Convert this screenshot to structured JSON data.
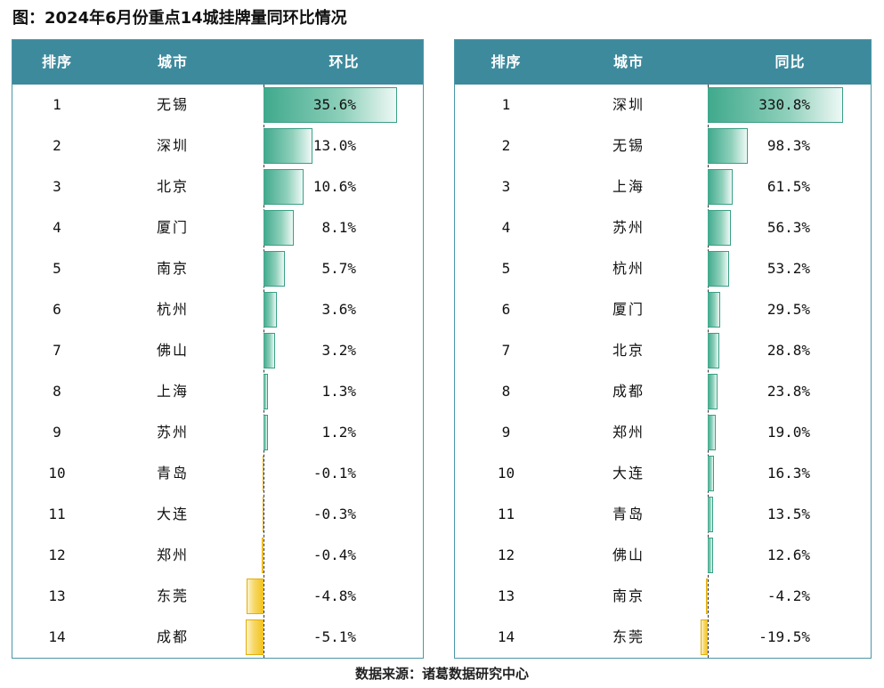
{
  "title": "图：2024年6月份重点14城挂牌量同环比情况",
  "source": "数据来源：诸葛数据研究中心",
  "colors": {
    "header_bg": "#3e8a9d",
    "positive_bar": "#3fa98c",
    "negative_bar": "#f2c21b"
  },
  "chart_data": [
    {
      "type": "table",
      "headers": {
        "rank": "排序",
        "city": "城市",
        "metric": "环比"
      },
      "rows": [
        {
          "rank": "1",
          "city": "无锡",
          "label": "35.6%",
          "value": 35.6
        },
        {
          "rank": "2",
          "city": "深圳",
          "label": "13.0%",
          "value": 13.0
        },
        {
          "rank": "3",
          "city": "北京",
          "label": "10.6%",
          "value": 10.6
        },
        {
          "rank": "4",
          "city": "厦门",
          "label": "8.1%",
          "value": 8.1
        },
        {
          "rank": "5",
          "city": "南京",
          "label": "5.7%",
          "value": 5.7
        },
        {
          "rank": "6",
          "city": "杭州",
          "label": "3.6%",
          "value": 3.6
        },
        {
          "rank": "7",
          "city": "佛山",
          "label": "3.2%",
          "value": 3.2
        },
        {
          "rank": "8",
          "city": "上海",
          "label": "1.3%",
          "value": 1.3
        },
        {
          "rank": "9",
          "city": "苏州",
          "label": "1.2%",
          "value": 1.2
        },
        {
          "rank": "10",
          "city": "青岛",
          "label": "-0.1%",
          "value": -0.1
        },
        {
          "rank": "11",
          "city": "大连",
          "label": "-0.3%",
          "value": -0.3
        },
        {
          "rank": "12",
          "city": "郑州",
          "label": "-0.4%",
          "value": -0.4
        },
        {
          "rank": "13",
          "city": "东莞",
          "label": "-4.8%",
          "value": -4.8
        },
        {
          "rank": "14",
          "city": "成都",
          "label": "-5.1%",
          "value": -5.1
        }
      ]
    },
    {
      "type": "table",
      "headers": {
        "rank": "排序",
        "city": "城市",
        "metric": "同比"
      },
      "rows": [
        {
          "rank": "1",
          "city": "深圳",
          "label": "330.8%",
          "value": 330.8
        },
        {
          "rank": "2",
          "city": "无锡",
          "label": "98.3%",
          "value": 98.3
        },
        {
          "rank": "3",
          "city": "上海",
          "label": "61.5%",
          "value": 61.5
        },
        {
          "rank": "4",
          "city": "苏州",
          "label": "56.3%",
          "value": 56.3
        },
        {
          "rank": "5",
          "city": "杭州",
          "label": "53.2%",
          "value": 53.2
        },
        {
          "rank": "6",
          "city": "厦门",
          "label": "29.5%",
          "value": 29.5
        },
        {
          "rank": "7",
          "city": "北京",
          "label": "28.8%",
          "value": 28.8
        },
        {
          "rank": "8",
          "city": "成都",
          "label": "23.8%",
          "value": 23.8
        },
        {
          "rank": "9",
          "city": "郑州",
          "label": "19.0%",
          "value": 19.0
        },
        {
          "rank": "10",
          "city": "大连",
          "label": "16.3%",
          "value": 16.3
        },
        {
          "rank": "11",
          "city": "青岛",
          "label": "13.5%",
          "value": 13.5
        },
        {
          "rank": "12",
          "city": "佛山",
          "label": "12.6%",
          "value": 12.6
        },
        {
          "rank": "13",
          "city": "南京",
          "label": "-4.2%",
          "value": -4.2
        },
        {
          "rank": "14",
          "city": "东莞",
          "label": "-19.5%",
          "value": -19.5
        }
      ]
    }
  ]
}
